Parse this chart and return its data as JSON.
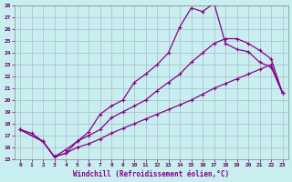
{
  "xlabel": "Windchill (Refroidissement éolien,°C)",
  "xlim": [
    -0.5,
    23.5
  ],
  "ylim": [
    15,
    28
  ],
  "xticks": [
    0,
    1,
    2,
    3,
    4,
    5,
    6,
    7,
    8,
    9,
    10,
    11,
    12,
    13,
    14,
    15,
    16,
    17,
    18,
    19,
    20,
    21,
    22,
    23
  ],
  "yticks": [
    15,
    16,
    17,
    18,
    19,
    20,
    21,
    22,
    23,
    24,
    25,
    26,
    27,
    28
  ],
  "bg_color": "#c8eef0",
  "line_color": "#880088",
  "grid_color": "#aabbcc",
  "line1_x": [
    0,
    1,
    2,
    3,
    4,
    5,
    6,
    7,
    8,
    9,
    10,
    11,
    12,
    13,
    14,
    15,
    16,
    17,
    18,
    19,
    20,
    21,
    22,
    23
  ],
  "line1_y": [
    17.5,
    17.2,
    16.5,
    15.2,
    15.5,
    16.5,
    17.3,
    18.8,
    19.5,
    20.0,
    21.5,
    22.2,
    23.0,
    24.0,
    26.2,
    27.8,
    27.5,
    28.2,
    24.8,
    24.3,
    24.1,
    23.2,
    22.8,
    20.6
  ],
  "line2_x": [
    0,
    2,
    3,
    4,
    5,
    6,
    7,
    8,
    9,
    10,
    11,
    12,
    13,
    14,
    15,
    16,
    17,
    18,
    19,
    20,
    21,
    22,
    23
  ],
  "line2_y": [
    17.5,
    16.5,
    15.2,
    15.8,
    16.5,
    17.0,
    17.5,
    18.5,
    19.0,
    19.5,
    20.0,
    20.8,
    21.5,
    22.2,
    23.2,
    24.0,
    24.8,
    25.2,
    25.2,
    24.8,
    24.2,
    23.5,
    20.6
  ],
  "line3_x": [
    0,
    2,
    3,
    4,
    5,
    6,
    7,
    8,
    9,
    10,
    11,
    12,
    13,
    14,
    15,
    16,
    17,
    18,
    19,
    20,
    21,
    22,
    23
  ],
  "line3_y": [
    17.5,
    16.5,
    15.2,
    15.5,
    16.0,
    16.3,
    16.7,
    17.2,
    17.6,
    18.0,
    18.4,
    18.8,
    19.2,
    19.6,
    20.0,
    20.5,
    21.0,
    21.4,
    21.8,
    22.2,
    22.6,
    23.0,
    20.6
  ]
}
